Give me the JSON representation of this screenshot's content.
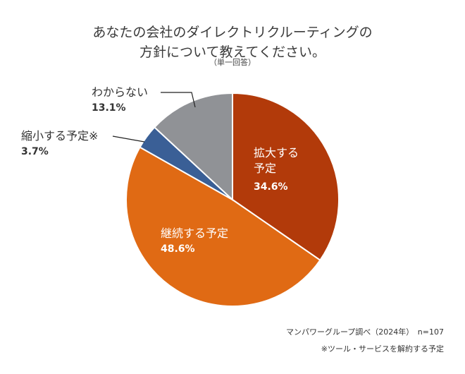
{
  "chart_data": {
    "type": "pie",
    "title": "あなたの会社のダイレクトリクルーティングの方針について教えてください。",
    "title_line1": "あなたの会社のダイレクトリクルーティングの",
    "title_line2": "方針について教えてください。",
    "subtitle": "（単一回答）",
    "slices": [
      {
        "label": "拡大する予定",
        "label_line1": "拡大する",
        "label_line2": "予定",
        "value": 34.6,
        "pct_text": "34.6%",
        "color": "#B23A0A"
      },
      {
        "label": "継続する予定",
        "value": 48.6,
        "pct_text": "48.6%",
        "color": "#E06A14"
      },
      {
        "label": "縮小する予定※",
        "value": 3.7,
        "pct_text": "3.7%",
        "color": "#3A5F96"
      },
      {
        "label": "わからない",
        "value": 13.1,
        "pct_text": "13.1%",
        "color": "#909296"
      }
    ],
    "start": "top",
    "direction": "clockwise"
  },
  "footer": {
    "source": "マンパワーグループ調べ（2024年）　n=107",
    "note": "※ツール・サービスを解約する予定"
  }
}
